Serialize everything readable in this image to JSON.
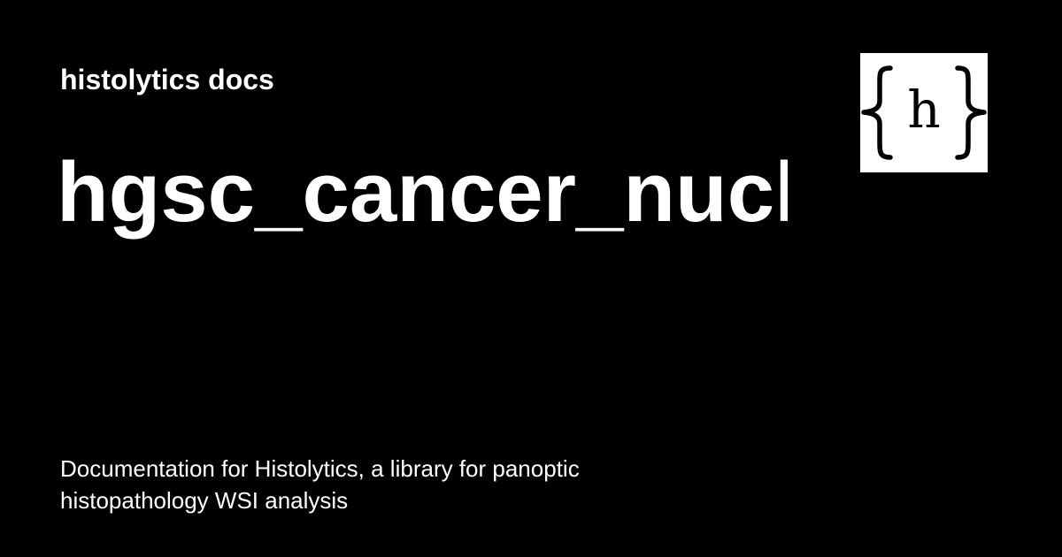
{
  "site": {
    "name": "histolytics docs"
  },
  "page": {
    "title": "hgsc_cancer_nuclei",
    "description": "Documentation for Histolytics, a library for panoptic histopathology WSI analysis"
  },
  "logo": {
    "icon": "curly-braces-h-logo",
    "background": "#ffffff",
    "foreground": "#000000",
    "glyph": "h"
  },
  "colors": {
    "background": "#000000",
    "text": "#ffffff"
  }
}
